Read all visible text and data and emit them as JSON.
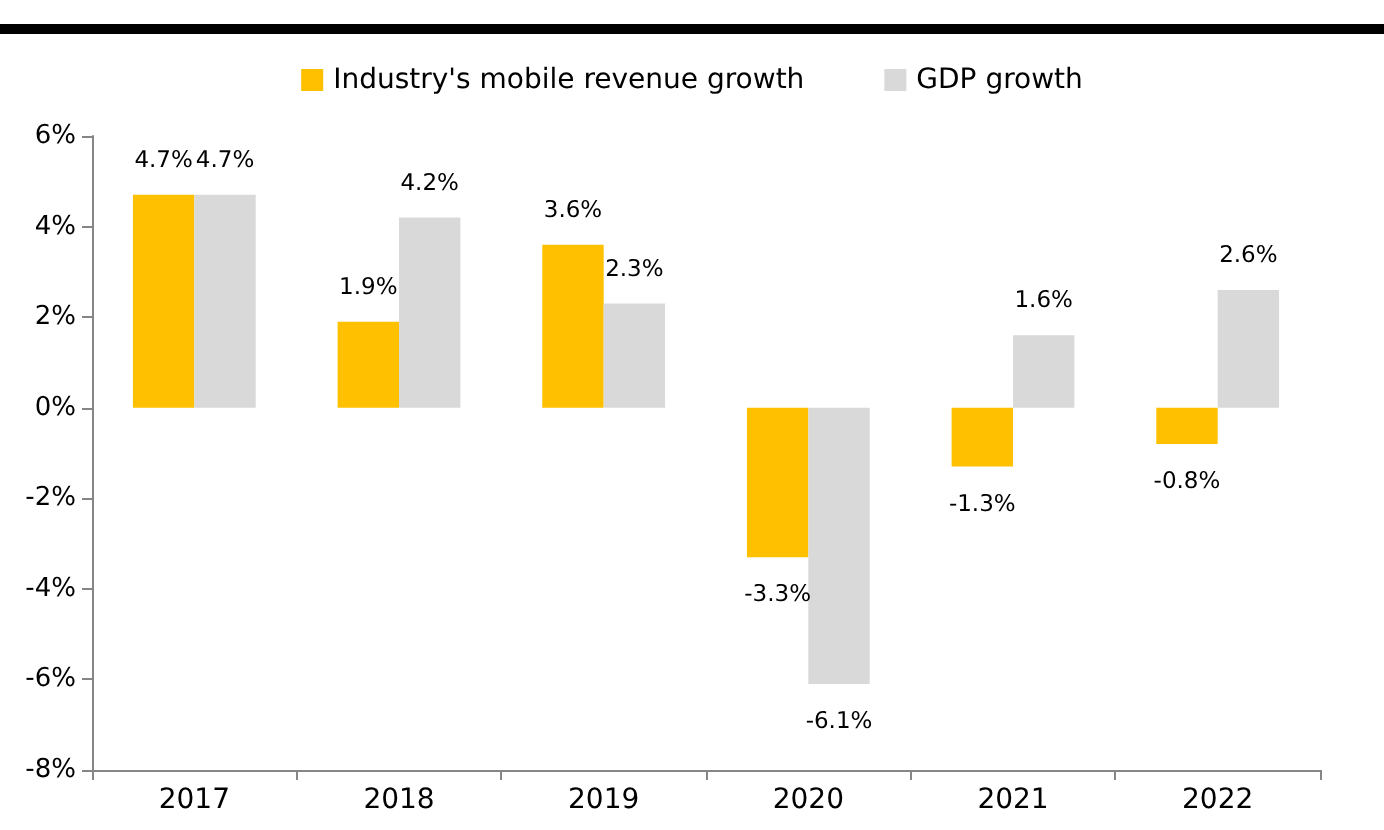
{
  "chart_data": {
    "type": "bar",
    "categories": [
      "2017",
      "2018",
      "2019",
      "2020",
      "2021",
      "2022"
    ],
    "series": [
      {
        "name": "Industry's mobile revenue growth",
        "color": "#ffc000",
        "values": [
          4.7,
          1.9,
          3.6,
          -3.3,
          -1.3,
          -0.8
        ],
        "value_labels": [
          "4.7%",
          "1.9%",
          "3.6%",
          "-3.3%",
          "-1.3%",
          "-0.8%"
        ]
      },
      {
        "name": "GDP growth",
        "color": "#d9d9d9",
        "values": [
          4.7,
          4.2,
          2.3,
          -6.1,
          1.6,
          2.6
        ],
        "value_labels": [
          "4.7%",
          "4.2%",
          "2.3%",
          "-6.1%",
          "1.6%",
          "2.6%"
        ]
      }
    ],
    "ylim": [
      -8,
      6
    ],
    "yticks": [
      {
        "value": -8,
        "label": "-8%"
      },
      {
        "value": -6,
        "label": "-6%"
      },
      {
        "value": -4,
        "label": "-4%"
      },
      {
        "value": -2,
        "label": "-2%"
      },
      {
        "value": 0,
        "label": "0%"
      },
      {
        "value": 2,
        "label": "2%"
      },
      {
        "value": 4,
        "label": "4%"
      },
      {
        "value": 6,
        "label": "6%"
      }
    ],
    "grid": false,
    "legend": "top"
  }
}
